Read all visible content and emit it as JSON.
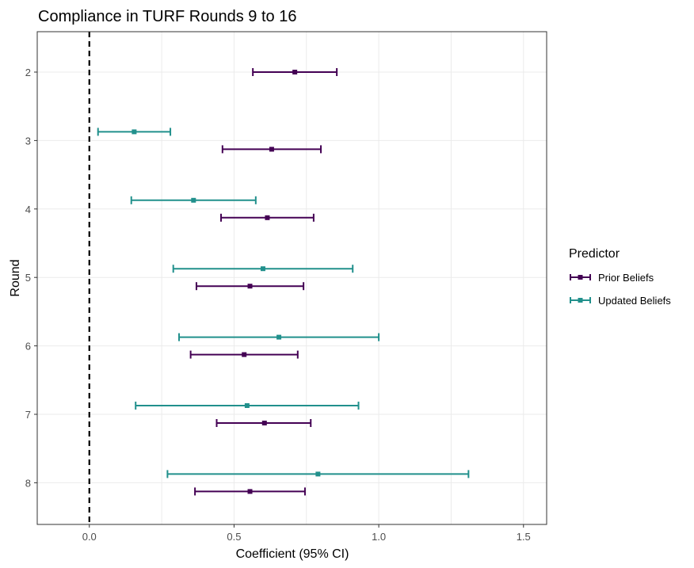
{
  "chart_data": {
    "type": "forest",
    "title": "Compliance in TURF Rounds 9 to 16",
    "xlabel": "Coefficient (95% CI)",
    "ylabel": "Round",
    "xlim": [
      -0.18,
      1.58
    ],
    "x_ticks": [
      0.0,
      0.5,
      1.0,
      1.5
    ],
    "x_tick_labels": [
      "0.0",
      "0.5",
      "1.0",
      "1.5"
    ],
    "categories": [
      "2",
      "3",
      "4",
      "5",
      "6",
      "7",
      "8"
    ],
    "reference_line": {
      "x": 0,
      "style": "dashed"
    },
    "legend": {
      "title": "Predictor",
      "position": "right"
    },
    "grid": true,
    "series": [
      {
        "name": "Prior Beliefs",
        "color": "#440154",
        "points": [
          {
            "round": "2",
            "estimate": 0.71,
            "lower": 0.565,
            "upper": 0.855
          },
          {
            "round": "3",
            "estimate": 0.63,
            "lower": 0.46,
            "upper": 0.8
          },
          {
            "round": "4",
            "estimate": 0.615,
            "lower": 0.455,
            "upper": 0.775
          },
          {
            "round": "5",
            "estimate": 0.555,
            "lower": 0.37,
            "upper": 0.74
          },
          {
            "round": "6",
            "estimate": 0.535,
            "lower": 0.35,
            "upper": 0.72
          },
          {
            "round": "7",
            "estimate": 0.605,
            "lower": 0.44,
            "upper": 0.765
          },
          {
            "round": "8",
            "estimate": 0.555,
            "lower": 0.365,
            "upper": 0.745
          }
        ]
      },
      {
        "name": "Updated Beliefs",
        "color": "#21908C",
        "points": [
          {
            "round": "3",
            "estimate": 0.155,
            "lower": 0.03,
            "upper": 0.28
          },
          {
            "round": "4",
            "estimate": 0.36,
            "lower": 0.145,
            "upper": 0.575
          },
          {
            "round": "5",
            "estimate": 0.6,
            "lower": 0.29,
            "upper": 0.91
          },
          {
            "round": "6",
            "estimate": 0.655,
            "lower": 0.31,
            "upper": 1.0
          },
          {
            "round": "7",
            "estimate": 0.545,
            "lower": 0.16,
            "upper": 0.93
          },
          {
            "round": "8",
            "estimate": 0.79,
            "lower": 0.27,
            "upper": 1.31
          }
        ]
      }
    ]
  }
}
